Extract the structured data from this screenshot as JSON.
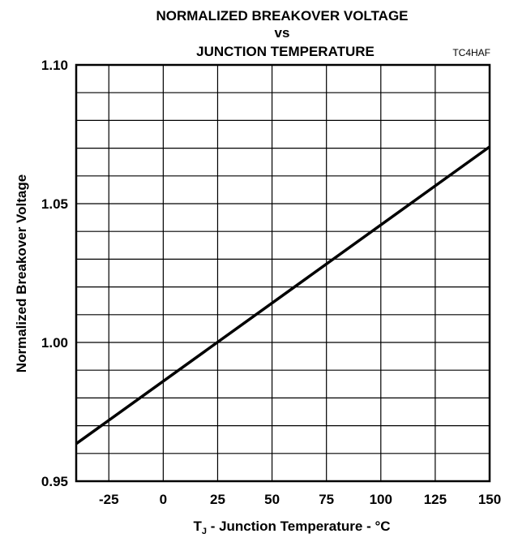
{
  "chart_data": {
    "type": "line",
    "title_lines": [
      "NORMALIZED BREAKOVER VOLTAGE",
      "vs",
      "JUNCTION TEMPERATURE"
    ],
    "figure_code": "TC4HAF",
    "xlabel_main": "T",
    "xlabel_sub": "J",
    "xlabel_rest": " - Junction Temperature - °C",
    "ylabel": "Normalized Breakover Voltage",
    "xlim": [
      -40,
      150
    ],
    "ylim": [
      0.95,
      1.1
    ],
    "x_ticks": [
      -25,
      0,
      25,
      50,
      75,
      100,
      125,
      150
    ],
    "x_tick_labels": [
      "-25",
      "0",
      "25",
      "50",
      "75",
      "100",
      "125",
      "150"
    ],
    "y_ticks": [
      0.95,
      1.0,
      1.05,
      1.1
    ],
    "y_tick_labels": [
      "0.95",
      "1.00",
      "1.05",
      "1.10"
    ],
    "x_grid": [
      -25,
      0,
      25,
      50,
      75,
      100,
      125
    ],
    "y_grid": [
      0.96,
      0.97,
      0.98,
      0.99,
      1.0,
      1.01,
      1.02,
      1.03,
      1.04,
      1.05,
      1.06,
      1.07,
      1.08,
      1.09
    ],
    "series": [
      {
        "x": [
          -40,
          150
        ],
        "y": [
          0.9635,
          1.0705
        ]
      }
    ]
  }
}
